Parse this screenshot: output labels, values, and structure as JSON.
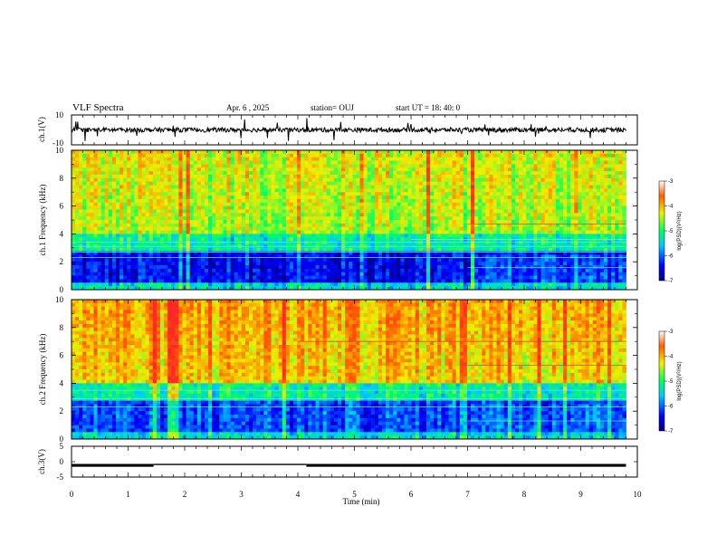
{
  "header": {
    "title": "VLF Spectra",
    "date": "Apr. 6 , 2025",
    "station": "station= OUJ",
    "start": "start UT = 18: 40: 0"
  },
  "chart_data": [
    {
      "type": "line",
      "name": "ch1-waveform",
      "ylabel": "ch.1(V)",
      "ylim": [
        -10,
        10
      ],
      "yticks": [
        "10",
        "-10"
      ],
      "baseline": 0
    },
    {
      "type": "heatmap",
      "name": "ch1-spectrogram",
      "ylabel": "ch.1 Frequency (kHz)",
      "ylim": [
        0,
        10
      ],
      "yticks": [
        "0",
        "2",
        "4",
        "6",
        "8",
        "10"
      ],
      "colorbar": {
        "label": "log(PSD)(V²/Hz)",
        "ticks": [
          "-3",
          "-4",
          "-5",
          "-6",
          "-7"
        ],
        "range": [
          -7,
          -3
        ]
      }
    },
    {
      "type": "heatmap",
      "name": "ch2-spectrogram",
      "ylabel": "ch.2 Frequency (kHz)",
      "ylim": [
        0,
        10
      ],
      "yticks": [
        "0",
        "2",
        "4",
        "6",
        "8",
        "10"
      ],
      "colorbar": {
        "label": "log(PSD)(V²/Hz)",
        "ticks": [
          "-3",
          "-4",
          "-5",
          "-6",
          "-7"
        ],
        "range": [
          -7,
          -3
        ]
      }
    },
    {
      "type": "line",
      "name": "ch3-signal",
      "ylabel": "ch.3(V)",
      "ylim": [
        -5,
        5
      ],
      "yticks": [
        "5",
        "0",
        "-5"
      ],
      "segments": [
        {
          "x": [
            0,
            1.45
          ],
          "y": -1.2
        },
        {
          "x": [
            1.45,
            4.15
          ],
          "y": -0.9
        },
        {
          "x": [
            4.15,
            9.8
          ],
          "y": -1.2
        }
      ]
    }
  ],
  "xaxis": {
    "label": "Time (min)",
    "xlim": [
      0,
      10
    ],
    "ticks": [
      "0",
      "1",
      "2",
      "3",
      "4",
      "5",
      "6",
      "7",
      "8",
      "9",
      "10"
    ],
    "data_end": 9.8
  },
  "colors": {
    "dark_blue": "#00008b",
    "blue": "#0044ff",
    "cyan": "#00e0e0",
    "green": "#30e060",
    "yellow": "#f0e040",
    "red": "#ff2020"
  }
}
